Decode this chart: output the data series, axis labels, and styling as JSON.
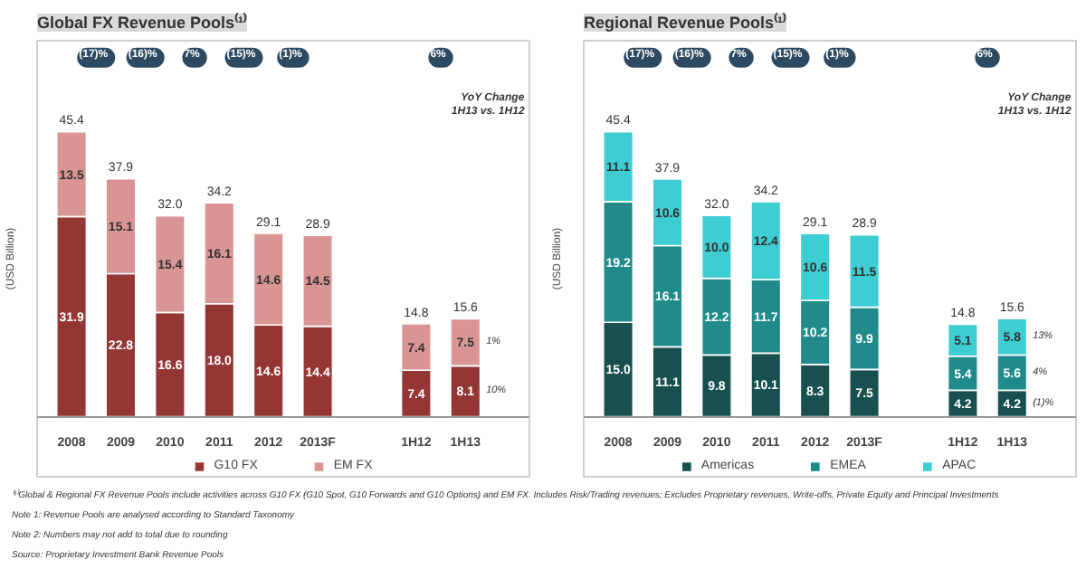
{
  "chart_data": [
    {
      "type": "bar",
      "stacked": true,
      "title": "Global FX Revenue Pools⁽¹⁾",
      "ylabel": "(USD Billion)",
      "categories": [
        "2008",
        "2009",
        "2010",
        "2011",
        "2012",
        "2013F",
        "1H12",
        "1H13"
      ],
      "series": [
        {
          "name": "G10 FX",
          "color": "#943634",
          "values": [
            31.9,
            22.8,
            16.6,
            18.0,
            14.6,
            14.4,
            7.4,
            8.1
          ],
          "value_labels": [
            "31.9",
            "22.8",
            "16.6",
            "18.0",
            "14.6",
            "14.4",
            "7.4",
            "8.1"
          ]
        },
        {
          "name": "EM FX",
          "color": "#d99594",
          "values": [
            13.5,
            15.1,
            15.4,
            16.1,
            14.6,
            14.5,
            7.4,
            7.5
          ],
          "value_labels": [
            "13.5",
            "15.1",
            "15.4",
            "16.1",
            "14.6",
            "14.5",
            "7.4",
            "7.5"
          ]
        }
      ],
      "totals": [
        "45.4",
        "37.9",
        "32.0",
        "34.2",
        "29.1",
        "28.9",
        "14.8",
        "15.6"
      ],
      "legend": "bottom",
      "grid": false,
      "annotations": [
        "(17)%",
        "(16)%",
        "7%",
        "(15)%",
        "(1)%",
        "6%",
        "YoY Change\n1H13 vs. 1H12",
        "1%",
        "10%",
        "⁽¹⁾Global & Regional FX Revenue Pools include activities across G10 FX (G10 Spot, G10 Forwards and G10 Options) and EM FX. Includes Risk/Trading revenues; Excludes Proprietary revenues, Write-offs, Private Equity and Principal Investments",
        "Note 1: Revenue Pools are analysed according to Standard Taxonomy",
        "Note 2: Numbers may not add to total due to rounding",
        "Source: Proprietary Investment Bank Revenue Pools"
      ]
    },
    {
      "type": "bar",
      "stacked": true,
      "title": "Regional Revenue Pools⁽¹⁾",
      "ylabel": "(USD Billion)",
      "categories": [
        "2008",
        "2009",
        "2010",
        "2011",
        "2012",
        "2013F",
        "1H12",
        "1H13"
      ],
      "series": [
        {
          "name": "Americas",
          "color": "#17504f",
          "values": [
            15.0,
            11.1,
            9.8,
            10.1,
            8.3,
            7.5,
            4.2,
            4.2
          ],
          "value_labels": [
            "15.0",
            "11.1",
            "9.8",
            "10.1",
            "8.3",
            "7.5",
            "4.2",
            "4.2"
          ]
        },
        {
          "name": "EMEA",
          "color": "#218b8c",
          "values": [
            19.2,
            16.1,
            12.2,
            11.7,
            10.2,
            9.9,
            5.4,
            5.6
          ],
          "value_labels": [
            "19.2",
            "16.1",
            "12.2",
            "11.7",
            "10.2",
            "9.9",
            "5.4",
            "5.6"
          ]
        },
        {
          "name": "APAC",
          "color": "#3ecdd2",
          "values": [
            11.1,
            10.6,
            10.0,
            12.4,
            10.6,
            11.5,
            5.1,
            5.8
          ],
          "value_labels": [
            "11.1",
            "10.6",
            "10.0",
            "12.4",
            "10.6",
            "11.5",
            "5.1",
            "5.8"
          ]
        }
      ],
      "totals": [
        "45.4",
        "37.9",
        "32.0",
        "34.2",
        "29.1",
        "28.9",
        "14.8",
        "15.6"
      ],
      "legend": "bottom",
      "grid": false,
      "annotations": [
        "(17)%",
        "(16)%",
        "7%",
        "(15)%",
        "(1)%",
        "6%",
        "YoY Change\n1H13 vs. 1H12",
        "13%",
        "4%",
        "(1)%"
      ]
    }
  ]
}
